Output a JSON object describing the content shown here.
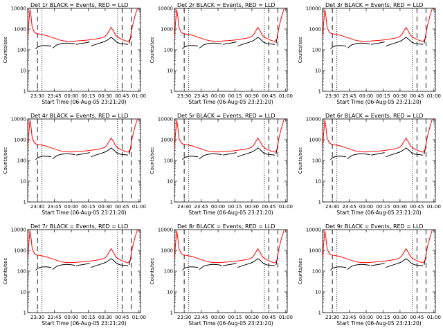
{
  "chart_data": {
    "type": "line",
    "layout": "3x3 grid",
    "common": {
      "xlabel": "Start Time (06-Aug-05 23:21:20)",
      "ylabel": "Counts/sec",
      "y_scale": "log",
      "ylim": [
        1,
        10000
      ],
      "y_ticks": [
        1,
        10,
        100,
        1000,
        10000
      ],
      "y_tick_labels": [
        "1",
        "10",
        "100",
        "1000",
        "10000"
      ],
      "x_range_minutes_after_start": [
        0,
        100
      ],
      "x_tick_labels": [
        "23:30",
        "23:45",
        "00:00",
        "00:15",
        "00:30",
        "00:45",
        "01:00"
      ],
      "series_colors": {
        "events": "#000000",
        "lld": "#ff0000"
      },
      "dashed_lines_x": [
        "23:30",
        "00:45",
        "00:53"
      ],
      "dotted_lines_x": [
        "23:34",
        "00:41"
      ]
    },
    "panels": [
      {
        "title": "Det 1r BLACK = Events, RED = LLD"
      },
      {
        "title": "Det 2r BLACK = Events, RED = LLD"
      },
      {
        "title": "Det 3r BLACK = Events, RED = LLD"
      },
      {
        "title": "Det 4r BLACK = Events, RED = LLD"
      },
      {
        "title": "Det 5r BLACK = Events, RED = LLD"
      },
      {
        "title": "Det 6r BLACK = Events, RED = LLD"
      },
      {
        "title": "Det 7r BLACK = Events, RED = LLD"
      },
      {
        "title": "Det 8r BLACK = Events, RED = LLD"
      },
      {
        "title": "Det 9r BLACK = Events, RED = LLD"
      }
    ],
    "lld_series": {
      "x_minutes": [
        0,
        1,
        2,
        3,
        4,
        6,
        8,
        12,
        16,
        20,
        24,
        28,
        32,
        36,
        40,
        44,
        48,
        52,
        56,
        60,
        64,
        68,
        70,
        72,
        74,
        76,
        78,
        80,
        83,
        86,
        89,
        91,
        92,
        93,
        95,
        97,
        98
      ],
      "y": [
        400,
        2000,
        9000,
        4000,
        1200,
        700,
        600,
        550,
        500,
        420,
        360,
        300,
        270,
        260,
        260,
        270,
        280,
        290,
        310,
        330,
        360,
        420,
        520,
        800,
        1200,
        800,
        500,
        400,
        330,
        280,
        250,
        350,
        800,
        1500,
        4000,
        9000,
        11000
      ]
    },
    "events_series": {
      "segments": [
        {
          "x_minutes": [
            7,
            9,
            13,
            17,
            21
          ],
          "y": [
            110,
            140,
            160,
            160,
            150
          ]
        },
        {
          "x_minutes": [
            22,
            26,
            30,
            34,
            38,
            42
          ],
          "y": [
            120,
            175,
            200,
            210,
            205,
            190
          ]
        },
        {
          "x_minutes": [
            43,
            46,
            50,
            55
          ],
          "y": [
            180,
            195,
            210,
            240
          ]
        },
        {
          "x_minutes": [
            56,
            60,
            64,
            68,
            70,
            72,
            74,
            76,
            79,
            82,
            86,
            89
          ],
          "y": [
            150,
            180,
            210,
            250,
            280,
            330,
            400,
            330,
            230,
            200,
            190,
            180
          ]
        },
        {
          "x_minutes": [
            90,
            91,
            92
          ],
          "y": [
            200,
            350,
            800
          ]
        }
      ]
    }
  }
}
